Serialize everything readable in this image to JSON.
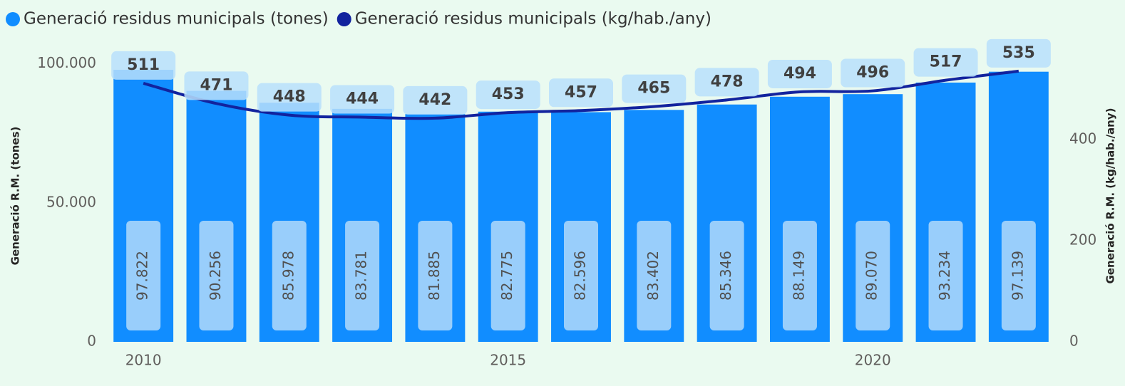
{
  "chart_data": {
    "type": "bar",
    "x": [
      2010,
      2011,
      2012,
      2013,
      2014,
      2015,
      2016,
      2017,
      2018,
      2019,
      2020,
      2021,
      2022
    ],
    "xlim": [
      2009.5,
      2022.5
    ],
    "xticks": [
      2010,
      2015,
      2020
    ],
    "series": [
      {
        "name": "Generació residus municipals (tones)",
        "type": "bar",
        "color": "#118dff",
        "values": [
          97822,
          90256,
          85978,
          83781,
          81885,
          82775,
          82596,
          83402,
          85346,
          88149,
          89070,
          93234,
          97139
        ],
        "value_labels": [
          "97.822",
          "90.256",
          "85.978",
          "83.781",
          "81.885",
          "82.775",
          "82.596",
          "83.402",
          "85.346",
          "88.149",
          "89.070",
          "93.234",
          "97.139"
        ]
      },
      {
        "name": "Generació residus municipals (kg/hab./any)",
        "type": "line",
        "axis": "y2",
        "color": "#12239e",
        "values": [
          511,
          471,
          448,
          444,
          442,
          453,
          457,
          465,
          478,
          494,
          496,
          517,
          535
        ]
      }
    ],
    "ylabel": "Generació R.M. (tones)",
    "y2label": "Generació R.M. (kg/hab./any)",
    "ylim": [
      0,
      105000
    ],
    "yticks": [
      0,
      {
        "value": 50000,
        "label": "50.000"
      },
      {
        "value": 100000,
        "label": "100.000"
      }
    ],
    "y2lim": [
      0,
      577
    ],
    "y2ticks": [
      0,
      200,
      400
    ]
  }
}
